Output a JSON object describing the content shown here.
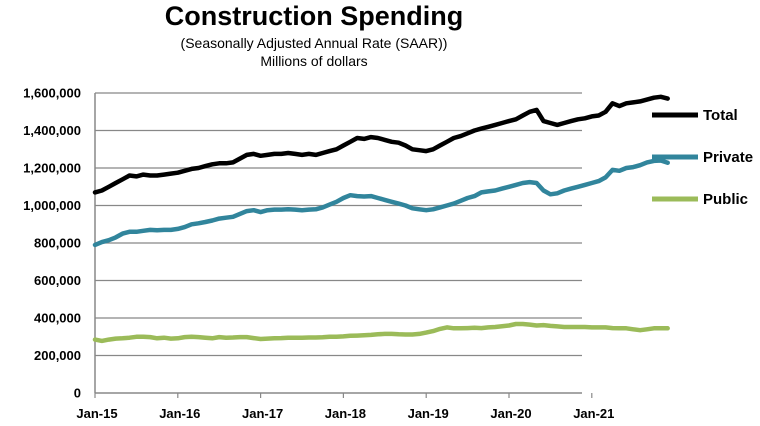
{
  "chart_data": {
    "type": "line",
    "title": "Construction Spending",
    "subtitle": "(Seasonally Adjusted Annual Rate (SAAR))",
    "units": "Millions of dollars",
    "x_tick_labels": [
      "Jan-15",
      "Jan-16",
      "Jan-17",
      "Jan-18",
      "Jan-19",
      "Jan-20",
      "Jan-21"
    ],
    "y_tick_labels": [
      "0",
      "200,000",
      "400,000",
      "600,000",
      "800,000",
      "1,000,000",
      "1,200,000",
      "1,400,000",
      "1,600,000"
    ],
    "ylim": [
      0,
      1600000
    ],
    "x_start": "Jan-15",
    "grid": true,
    "legend_position": "right",
    "series": [
      {
        "name": "Total",
        "color": "#000000",
        "values": [
          1070000,
          1080000,
          1100000,
          1120000,
          1140000,
          1160000,
          1155000,
          1165000,
          1160000,
          1160000,
          1165000,
          1170000,
          1175000,
          1185000,
          1195000,
          1200000,
          1210000,
          1220000,
          1225000,
          1225000,
          1230000,
          1250000,
          1270000,
          1275000,
          1265000,
          1270000,
          1275000,
          1275000,
          1280000,
          1275000,
          1270000,
          1275000,
          1270000,
          1280000,
          1290000,
          1300000,
          1320000,
          1340000,
          1360000,
          1355000,
          1365000,
          1360000,
          1350000,
          1340000,
          1335000,
          1320000,
          1300000,
          1295000,
          1290000,
          1300000,
          1320000,
          1340000,
          1360000,
          1370000,
          1385000,
          1400000,
          1410000,
          1420000,
          1430000,
          1440000,
          1450000,
          1460000,
          1480000,
          1500000,
          1510000,
          1450000,
          1440000,
          1430000,
          1440000,
          1450000,
          1460000,
          1465000,
          1475000,
          1480000,
          1500000,
          1545000,
          1530000,
          1545000,
          1550000,
          1555000,
          1565000,
          1575000,
          1580000,
          1570000
        ]
      },
      {
        "name": "Private",
        "color": "#31859c",
        "values": [
          790000,
          805000,
          815000,
          830000,
          850000,
          860000,
          860000,
          865000,
          870000,
          868000,
          870000,
          870000,
          875000,
          885000,
          900000,
          905000,
          912000,
          920000,
          930000,
          935000,
          940000,
          955000,
          970000,
          975000,
          965000,
          975000,
          978000,
          978000,
          980000,
          978000,
          975000,
          978000,
          980000,
          990000,
          1005000,
          1020000,
          1040000,
          1055000,
          1050000,
          1048000,
          1050000,
          1040000,
          1030000,
          1020000,
          1010000,
          1000000,
          985000,
          980000,
          975000,
          980000,
          990000,
          1000000,
          1010000,
          1025000,
          1040000,
          1050000,
          1070000,
          1075000,
          1080000,
          1090000,
          1100000,
          1110000,
          1120000,
          1125000,
          1120000,
          1080000,
          1060000,
          1065000,
          1080000,
          1090000,
          1100000,
          1110000,
          1120000,
          1130000,
          1150000,
          1190000,
          1185000,
          1200000,
          1205000,
          1215000,
          1230000,
          1238000,
          1240000,
          1228000
        ]
      },
      {
        "name": "Public",
        "color": "#9bbb59",
        "values": [
          285000,
          278000,
          285000,
          290000,
          292000,
          295000,
          300000,
          300000,
          298000,
          292000,
          295000,
          290000,
          292000,
          298000,
          300000,
          298000,
          295000,
          292000,
          298000,
          295000,
          296000,
          298000,
          298000,
          293000,
          288000,
          290000,
          292000,
          293000,
          295000,
          295000,
          295000,
          296000,
          296000,
          297000,
          300000,
          300000,
          302000,
          305000,
          306000,
          308000,
          310000,
          313000,
          315000,
          315000,
          313000,
          312000,
          312000,
          315000,
          322000,
          330000,
          342000,
          350000,
          345000,
          345000,
          346000,
          348000,
          346000,
          350000,
          352000,
          356000,
          360000,
          368000,
          368000,
          365000,
          360000,
          362000,
          358000,
          355000,
          352000,
          352000,
          352000,
          352000,
          350000,
          350000,
          350000,
          346000,
          345000,
          345000,
          340000,
          335000,
          340000,
          345000,
          345000,
          345000
        ]
      }
    ]
  }
}
